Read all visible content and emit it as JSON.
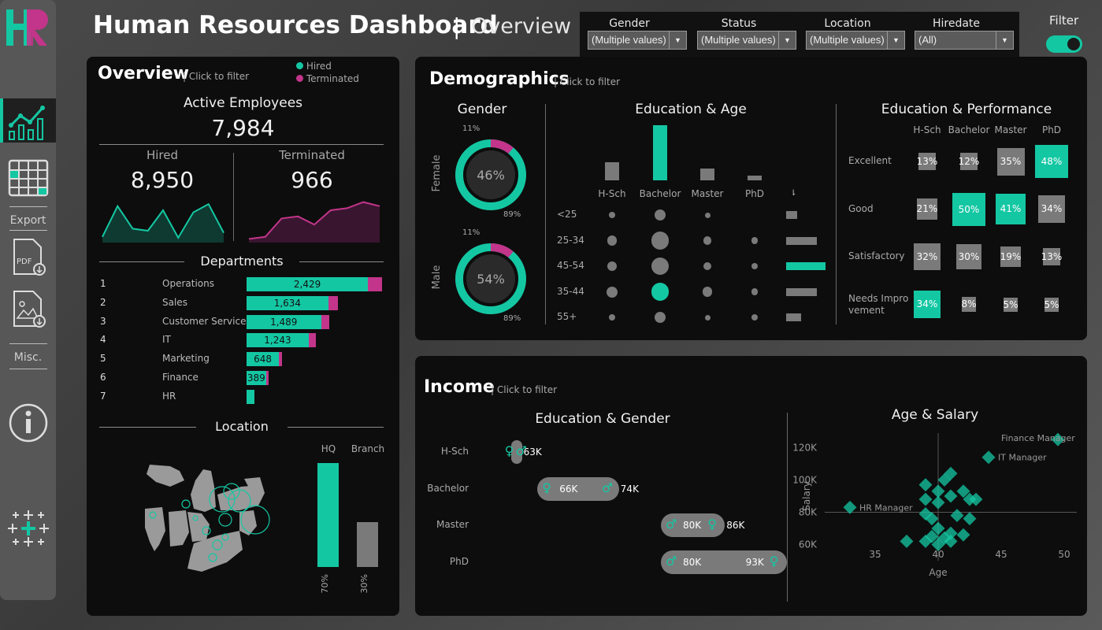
{
  "header": {
    "title": "Human Resources Dashboard",
    "separator": "|",
    "subtitle": "Overview",
    "filter_toggle_label": "Filter"
  },
  "logo": {
    "text": "HR",
    "color_h": "#14c7a3",
    "color_r": "#c2358a"
  },
  "sidebar": {
    "export_label": "Export",
    "misc_label": "Misc.",
    "icons": [
      "dashboard-chart-icon",
      "calendar-table-icon",
      "pdf-download-icon",
      "image-download-icon",
      "info-icon",
      "tableau-logo-icon"
    ]
  },
  "filters": [
    {
      "label": "Gender",
      "value": "(Multiple values)"
    },
    {
      "label": "Status",
      "value": "(Multiple values)"
    },
    {
      "label": "Location",
      "value": "(Multiple values)"
    },
    {
      "label": "Hiredate",
      "value": "(All)"
    }
  ],
  "colors": {
    "accent": "#14c7a3",
    "terminated": "#c2358a",
    "gray": "#7a7a7a"
  },
  "overview": {
    "title": "Overview",
    "click": "| Click to filter",
    "legend": {
      "hired": "Hired",
      "terminated": "Terminated"
    },
    "active_label": "Active Employees",
    "active_value": "7,984",
    "hired_label": "Hired",
    "hired_value": "8,950",
    "terminated_label": "Terminated",
    "terminated_value": "966",
    "hired_trend": [
      0.1,
      0.85,
      0.3,
      0.25,
      0.75,
      0.08,
      0.7,
      0.9,
      0.2
    ],
    "terminated_trend": [
      0.05,
      0.1,
      0.55,
      0.6,
      0.4,
      0.75,
      0.8,
      0.95,
      0.85
    ],
    "departments_title": "Departments",
    "departments": [
      {
        "rank": "1",
        "name": "Operations",
        "value": "2,429",
        "hired": 2429,
        "term": 280
      },
      {
        "rank": "2",
        "name": "Sales",
        "value": "1,634",
        "hired": 1634,
        "term": 190
      },
      {
        "rank": "3",
        "name": "Customer Service",
        "value": "1,489",
        "hired": 1489,
        "term": 170
      },
      {
        "rank": "4",
        "name": "IT",
        "value": "1,243",
        "hired": 1243,
        "term": 140
      },
      {
        "rank": "5",
        "name": "Marketing",
        "value": "648",
        "hired": 648,
        "term": 60
      },
      {
        "rank": "6",
        "name": "Finance",
        "value": "389",
        "hired": 389,
        "term": 50
      },
      {
        "rank": "7",
        "name": "HR",
        "value": "",
        "hired": 150,
        "term": 0
      }
    ],
    "location_title": "Location",
    "location_bars": [
      {
        "name": "HQ",
        "pct": "70%",
        "value": 70
      },
      {
        "name": "Branch",
        "pct": "30%",
        "value": 30
      }
    ]
  },
  "demographics": {
    "title": "Demographics",
    "click": "| Click to filter",
    "gender_title": "Gender",
    "gender": [
      {
        "name": "Female",
        "center": "46%",
        "top_pct": "11%",
        "bottom_pct": "89%",
        "term_share": 0.11
      },
      {
        "name": "Male",
        "center": "54%",
        "top_pct": "11%",
        "bottom_pct": "89%",
        "term_share": 0.11
      }
    ],
    "edu_age_title": "Education & Age",
    "education": [
      "H-Sch",
      "Bachelor",
      "Master",
      "PhD"
    ],
    "education_totals": [
      0.33,
      1.0,
      0.22,
      0.08
    ],
    "age_groups": [
      "<25",
      "25-34",
      "45-54",
      "35-44",
      "55+"
    ],
    "age_totals": [
      0.27,
      0.78,
      1.0,
      0.78,
      0.38
    ],
    "bubbles": [
      [
        0.55,
        1.0,
        0.5,
        0
      ],
      [
        0.9,
        1.6,
        0.75,
        0.6
      ],
      [
        0.9,
        1.6,
        0.75,
        0.6
      ],
      [
        1.0,
        1.7,
        0.9,
        0.6
      ],
      [
        0.55,
        1.05,
        0.5,
        0.6
      ]
    ],
    "highlight_bubble": [
      3,
      1
    ],
    "edu_perf_title": "Education & Performance",
    "perf_rows": [
      "Excellent",
      "Good",
      "Satisfactory",
      "Needs Improvement"
    ],
    "perf_labels": [
      "Excellent",
      "Good",
      "Satisfactory",
      "Needs Impro vement"
    ],
    "perf_values": [
      [
        "13%",
        "12%",
        "35%",
        "48%"
      ],
      [
        "21%",
        "50%",
        "41%",
        "34%"
      ],
      [
        "32%",
        "30%",
        "19%",
        "13%"
      ],
      [
        "34%",
        "8%",
        "5%",
        "5%"
      ]
    ],
    "perf_nums": [
      [
        13,
        12,
        35,
        48
      ],
      [
        21,
        50,
        41,
        34
      ],
      [
        32,
        30,
        19,
        13
      ],
      [
        34,
        8,
        5,
        5
      ]
    ],
    "perf_highlight": [
      [
        0,
        3
      ],
      [
        1,
        1
      ],
      [
        1,
        2
      ],
      [
        3,
        0
      ]
    ]
  },
  "income": {
    "title": "Income",
    "click": "| Click to filter",
    "edu_gender_title": "Education & Gender",
    "rows": [
      {
        "edu": "H-Sch",
        "left": "",
        "right": "63K",
        "min": 63,
        "max": 63
      },
      {
        "edu": "Bachelor",
        "left": "66K",
        "right": "74K",
        "min": 66,
        "max": 74
      },
      {
        "edu": "Master",
        "left": "80K",
        "right": "86K",
        "min": 80,
        "max": 86
      },
      {
        "edu": "PhD",
        "left": "80K",
        "right": "93K",
        "min": 80,
        "max": 93
      }
    ],
    "age_salary_title": "Age & Salary",
    "y_axis_label": "Salary",
    "x_axis_label": "Age",
    "y_ticks": [
      "120K",
      "100K",
      "80K",
      "60K"
    ],
    "x_ticks": [
      "35",
      "40",
      "45",
      "50"
    ]
  },
  "chart_data": {
    "type": "scatter",
    "title": "Age & Salary",
    "xlabel": "Age",
    "ylabel": "Salary",
    "xlim": [
      31,
      51
    ],
    "ylim": [
      50,
      128
    ],
    "points": [
      {
        "x": 49.5,
        "y": 125,
        "label": "Finance Manager"
      },
      {
        "x": 44,
        "y": 114,
        "label": "IT Manager"
      },
      {
        "x": 33,
        "y": 83,
        "label": "HR Manager"
      },
      {
        "x": 41,
        "y": 104
      },
      {
        "x": 39,
        "y": 97
      },
      {
        "x": 40.5,
        "y": 100
      },
      {
        "x": 42,
        "y": 93
      },
      {
        "x": 40,
        "y": 93
      },
      {
        "x": 41,
        "y": 90
      },
      {
        "x": 39,
        "y": 88
      },
      {
        "x": 40,
        "y": 86
      },
      {
        "x": 42.5,
        "y": 88
      },
      {
        "x": 43,
        "y": 88
      },
      {
        "x": 41.5,
        "y": 78
      },
      {
        "x": 39.5,
        "y": 76
      },
      {
        "x": 40,
        "y": 70
      },
      {
        "x": 41,
        "y": 67
      },
      {
        "x": 39.5,
        "y": 65
      },
      {
        "x": 40.5,
        "y": 64
      },
      {
        "x": 42,
        "y": 66
      },
      {
        "x": 39,
        "y": 62
      },
      {
        "x": 41,
        "y": 62
      },
      {
        "x": 37.5,
        "y": 62
      },
      {
        "x": 40,
        "y": 60
      },
      {
        "x": 42.5,
        "y": 76
      },
      {
        "x": 39,
        "y": 79
      }
    ]
  }
}
